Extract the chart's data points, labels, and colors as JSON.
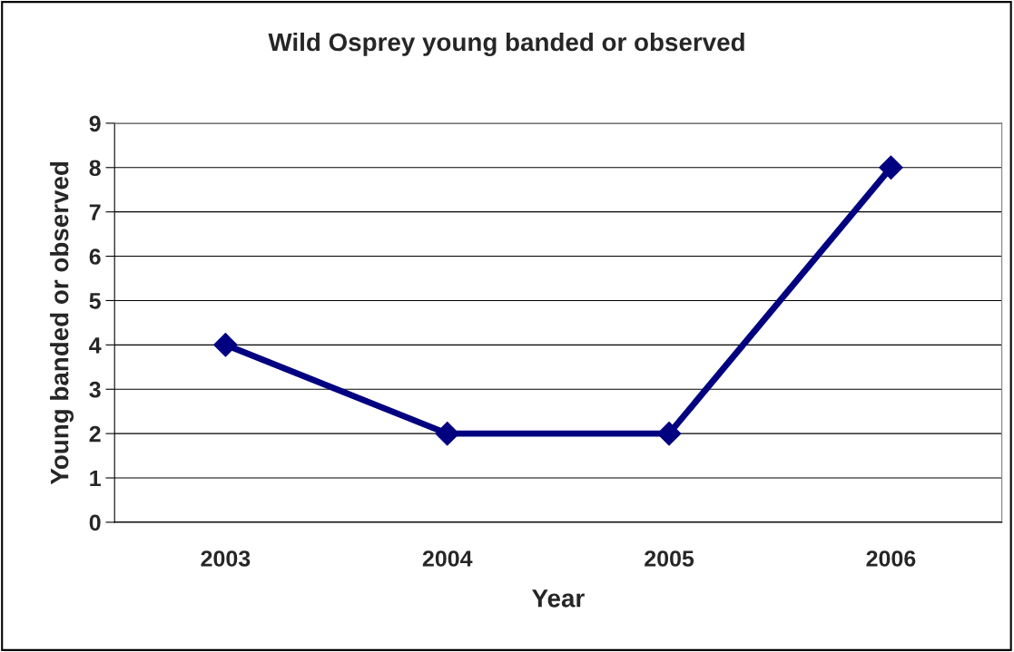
{
  "chart_data": {
    "type": "line",
    "title": "Wild Osprey young banded or observed",
    "xlabel": "Year",
    "ylabel": "Young banded or observed",
    "categories": [
      "2003",
      "2004",
      "2005",
      "2006"
    ],
    "series": [
      {
        "color": "#000080",
        "values": [
          4,
          2,
          2,
          8
        ]
      }
    ],
    "ylim": [
      0,
      9
    ],
    "yticks": [
      0,
      1,
      2,
      3,
      4,
      5,
      6,
      7,
      8,
      9
    ],
    "grid": "y",
    "marker": "diamond",
    "line_style": "solid",
    "legend": false
  }
}
